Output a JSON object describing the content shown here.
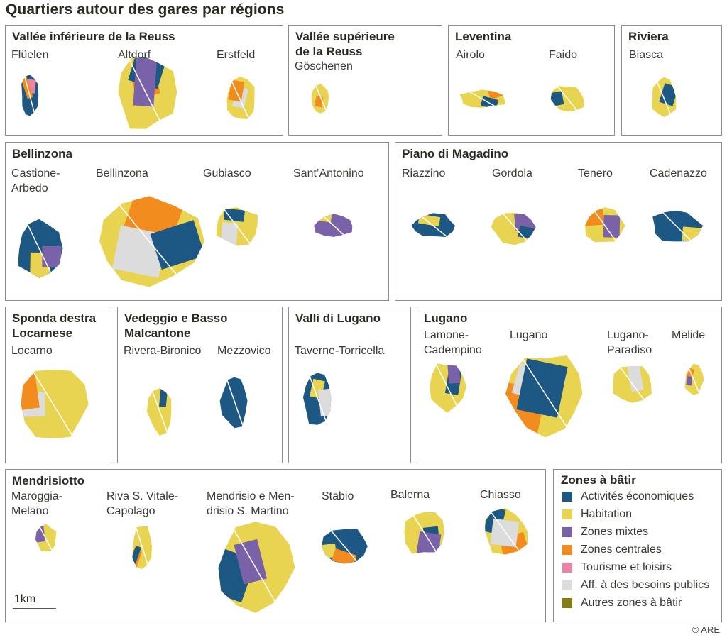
{
  "title": "Quartiers autour des gares par régions",
  "colors": {
    "activites": "#1d5783",
    "habitation": "#e8d450",
    "mixtes": "#7a62a9",
    "centrales": "#f28c1f",
    "tourisme": "#ee82a3",
    "publics": "#dcdcdc",
    "autres": "#857d14"
  },
  "regions": [
    {
      "title": "Vallée inférieure de la Reuss",
      "places": [
        "Flüelen",
        "Altdorf",
        "Erstfeld"
      ]
    },
    {
      "title": "Vallée supérieure\nde la Reuss",
      "places": [
        "Göschenen"
      ]
    },
    {
      "title": "Leventina",
      "places": [
        "Airolo",
        "Faido"
      ]
    },
    {
      "title": "Riviera",
      "places": [
        "Biasca"
      ]
    },
    {
      "title": "Bellinzona",
      "places": [
        "Castione-\nArbedo",
        "Bellinzona",
        "Gubiasco",
        "Sant’Antonino"
      ]
    },
    {
      "title": "Piano di Magadino",
      "places": [
        "Riazzino",
        "Gordola",
        "Tenero",
        "Cadenazzo"
      ]
    },
    {
      "title": "Sponda destra\nLocarnese",
      "places": [
        "Locarno"
      ]
    },
    {
      "title": "Vedeggio e Basso\nMalcantone",
      "places": [
        "Rivera-Bironico",
        "Mezzovico"
      ]
    },
    {
      "title": "Valli di Lugano",
      "places": [
        "Taverne-Torricella"
      ]
    },
    {
      "title": "Lugano",
      "places": [
        "Lamone-\nCadempino",
        "Lugano",
        "Lugano-\nParadiso",
        "Melide"
      ]
    },
    {
      "title": "Mendrisiotto",
      "places": [
        "Maroggia-\nMelano",
        "Riva S. Vitale-\nCapolago",
        "Mendrisio e Men-\ndrisio S. Martino",
        "Stabio",
        "Balerna",
        "Chiasso"
      ]
    }
  ],
  "scale": "1km",
  "legend": {
    "title": "Zones à bâtir",
    "items": [
      {
        "label": "Activités économiques",
        "color": "#1d5783"
      },
      {
        "label": "Habitation",
        "color": "#e8d450"
      },
      {
        "label": "Zones mixtes",
        "color": "#7a62a9"
      },
      {
        "label": "Zones centrales",
        "color": "#f28c1f"
      },
      {
        "label": "Tourisme et loisirs",
        "color": "#ee82a3"
      },
      {
        "label": "Aff. à des besoins publics",
        "color": "#dcdcdc"
      },
      {
        "label": "Autres zones à bâtir",
        "color": "#857d14"
      }
    ]
  },
  "credit": "© ARE"
}
